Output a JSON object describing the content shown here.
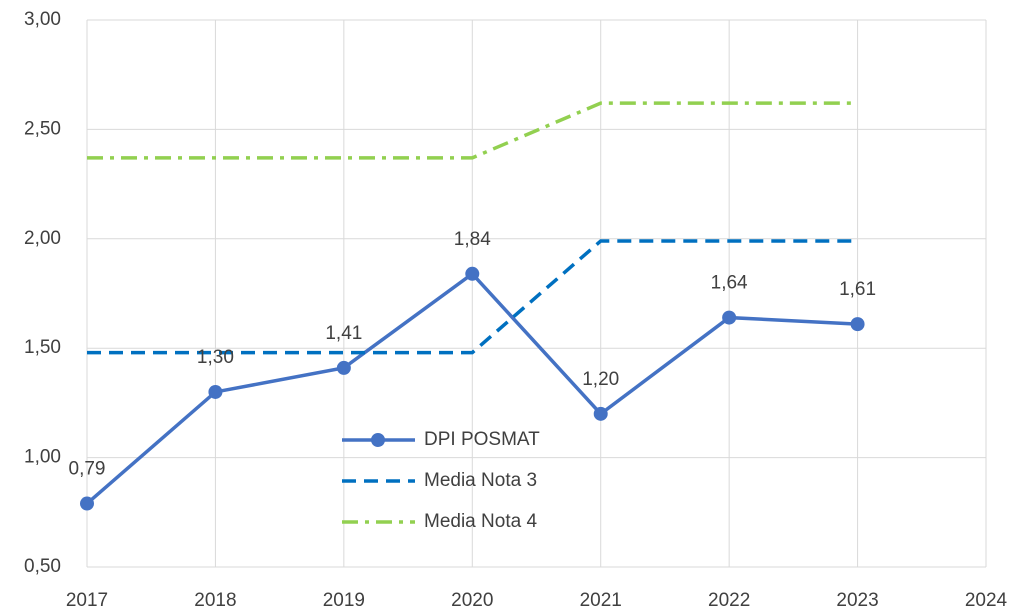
{
  "chart_data": {
    "type": "line",
    "x": [
      2017,
      2018,
      2019,
      2020,
      2021,
      2022,
      2023
    ],
    "xlim": [
      2017,
      2024
    ],
    "xticks": [
      2017,
      2018,
      2019,
      2020,
      2021,
      2022,
      2023,
      2024
    ],
    "ylim": [
      0.5,
      3.0
    ],
    "yticks": [
      {
        "value": 0.5,
        "label": "0,50"
      },
      {
        "value": 1.0,
        "label": "1,00"
      },
      {
        "value": 1.5,
        "label": "1,50"
      },
      {
        "value": 2.0,
        "label": "2,00"
      },
      {
        "value": 2.5,
        "label": "2,50"
      },
      {
        "value": 3.0,
        "label": "3,00"
      }
    ],
    "grid": true,
    "series": [
      {
        "name": "DPI POSMAT",
        "color": "#4472c4",
        "style": "solid",
        "markers": true,
        "values": [
          0.79,
          1.3,
          1.41,
          1.84,
          1.2,
          1.64,
          1.61
        ],
        "value_labels": [
          "0,79",
          "1,30",
          "1,41",
          "1,84",
          "1,20",
          "1,64",
          "1,61"
        ]
      },
      {
        "name": "Media Nota 3",
        "color": "#0070c0",
        "style": "dashed",
        "markers": false,
        "values": [
          1.48,
          1.48,
          1.48,
          1.48,
          1.99,
          1.99,
          1.99
        ]
      },
      {
        "name": "Media Nota 4",
        "color": "#92d050",
        "style": "dashdot",
        "markers": false,
        "values": [
          2.37,
          2.37,
          2.37,
          2.37,
          2.62,
          2.62,
          2.62
        ]
      }
    ]
  }
}
